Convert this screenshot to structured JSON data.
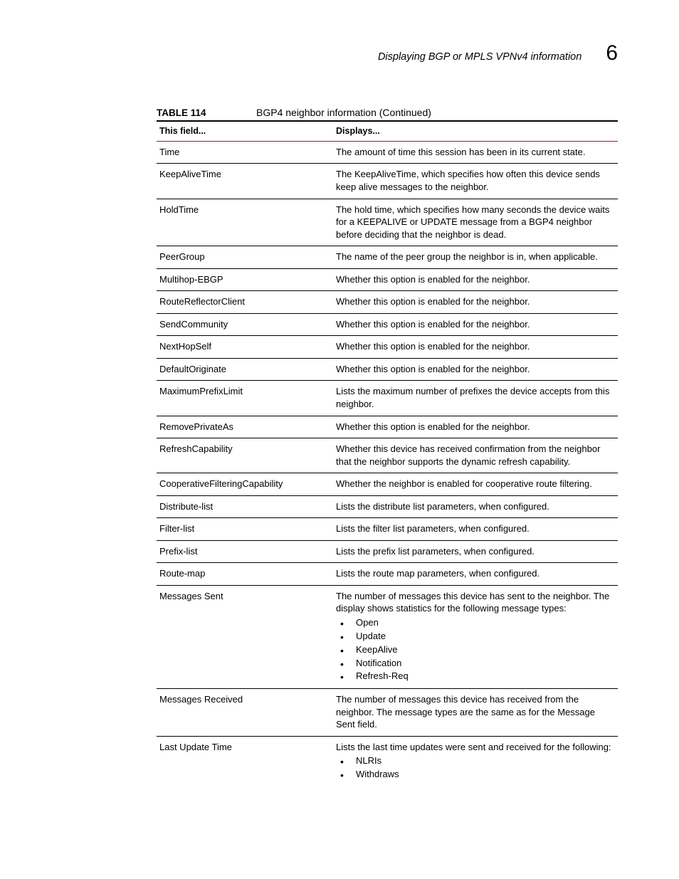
{
  "header": {
    "title": "Displaying BGP or MPLS VPNv4 information",
    "chapter_number": "6"
  },
  "table": {
    "label": "TABLE 114",
    "title": "BGP4 neighbor information  (Continued)",
    "head": {
      "col1": "This field...",
      "col2": "Displays..."
    },
    "rows": [
      {
        "field": "Time",
        "desc": "The amount of time this session has been in its current state."
      },
      {
        "field": "KeepAliveTime",
        "desc": "The KeepAliveTime, which specifies how often this device sends keep alive messages to the neighbor."
      },
      {
        "field": "HoldTime",
        "desc": "The hold time, which specifies how many seconds the device waits for a KEEPALIVE or UPDATE message from a BGP4 neighbor before deciding that the neighbor is dead."
      },
      {
        "field": "PeerGroup",
        "desc": "The name of the peer group the neighbor is in, when applicable."
      },
      {
        "field": "Multihop-EBGP",
        "desc": "Whether this option is enabled for the neighbor."
      },
      {
        "field": "RouteReflectorClient",
        "desc": "Whether this option is enabled for the neighbor."
      },
      {
        "field": "SendCommunity",
        "desc": "Whether this option is enabled for the neighbor."
      },
      {
        "field": "NextHopSelf",
        "desc": "Whether this option is enabled for the neighbor."
      },
      {
        "field": "DefaultOriginate",
        "desc": "Whether this option is enabled for the neighbor."
      },
      {
        "field": "MaximumPrefixLimit",
        "desc": "Lists the maximum number of prefixes the device accepts from this neighbor."
      },
      {
        "field": "RemovePrivateAs",
        "desc": "Whether this option is enabled for the neighbor."
      },
      {
        "field": "RefreshCapability",
        "desc": "Whether this device has received confirmation from the neighbor that the neighbor supports the dynamic refresh capability."
      },
      {
        "field": "CooperativeFilteringCapability",
        "desc": "Whether the neighbor is enabled for cooperative route filtering."
      },
      {
        "field": "Distribute-list",
        "desc": "Lists the distribute list parameters, when configured."
      },
      {
        "field": "Filter-list",
        "desc": "Lists the filter list parameters, when configured."
      },
      {
        "field": "Prefix-list",
        "desc": "Lists the prefix list parameters, when configured."
      },
      {
        "field": "Route-map",
        "desc": "Lists the route map parameters, when configured."
      },
      {
        "field": "Messages Sent",
        "desc": "The number of messages this device has sent to the neighbor. The display shows statistics for the following message types:",
        "bullets": [
          "Open",
          "Update",
          "KeepAlive",
          "Notification",
          "Refresh-Req"
        ]
      },
      {
        "field": "Messages Received",
        "desc": "The number of messages this device has received from the neighbor. The message types are the same as for the Message Sent field."
      },
      {
        "field": "Last Update Time",
        "desc": "Lists the last time updates were sent and received for the following:",
        "bullets": [
          "NLRIs",
          "Withdraws"
        ]
      }
    ]
  }
}
